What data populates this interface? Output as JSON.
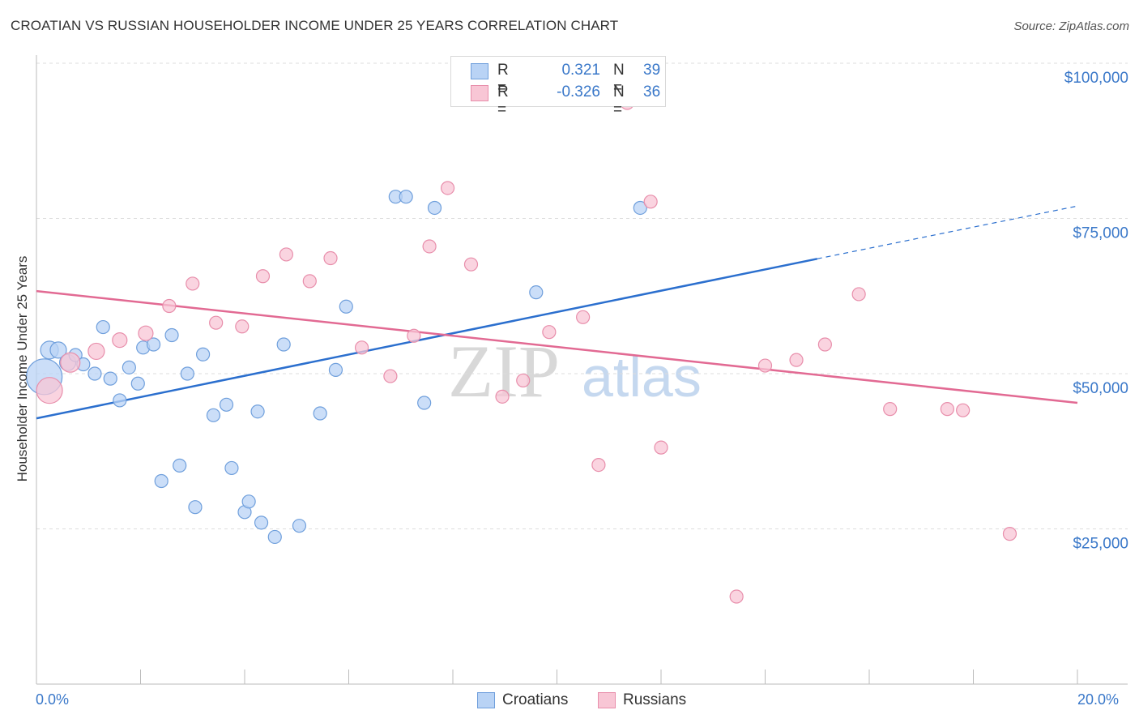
{
  "title": "CROATIAN VS RUSSIAN HOUSEHOLDER INCOME UNDER 25 YEARS CORRELATION CHART",
  "source": "Source: ZipAtlas.com",
  "watermark": {
    "zip": "ZIP",
    "atlas": "atlas"
  },
  "colors": {
    "croatians_fill": "#b9d3f5",
    "croatians_stroke": "#6f9fdc",
    "croatians_line": "#2b6fce",
    "russians_fill": "#f8c6d5",
    "russians_stroke": "#e88eab",
    "russians_line": "#e26a93",
    "axis_text": "#3a78c9",
    "grid": "#dddddd"
  },
  "legend": {
    "rows": [
      {
        "r_label": "R =",
        "r_value": "0.321",
        "n_label": "N =",
        "n_value": "39"
      },
      {
        "r_label": "R =",
        "r_value": "-0.326",
        "n_label": "N =",
        "n_value": "36"
      }
    ]
  },
  "bottom_legend": [
    "Croatians",
    "Russians"
  ],
  "x_axis": {
    "min_label": "0.0%",
    "max_label": "20.0%"
  },
  "chart_data": {
    "type": "scatter",
    "title": "CROATIAN VS RUSSIAN HOUSEHOLDER INCOME UNDER 25 YEARS CORRELATION CHART",
    "xlabel": "",
    "ylabel": "Householder Income Under 25 Years",
    "xlim": [
      0,
      20
    ],
    "ylim": [
      0,
      105000
    ],
    "y_ticks": [
      25000,
      50000,
      75000,
      100000
    ],
    "y_tick_labels": [
      "$25,000",
      "$50,000",
      "$75,000",
      "$100,000"
    ],
    "x_tick_labels": [
      "0.0%",
      "20.0%"
    ],
    "series": [
      {
        "name": "Croatians",
        "trend": {
          "x": [
            0.0,
            15.0
          ],
          "y": [
            42800,
            68500
          ],
          "dashed_to": {
            "x": 20.0,
            "y": 77000
          }
        },
        "points": [
          {
            "x": 0.15,
            "y": 49500,
            "size": 22
          },
          {
            "x": 0.25,
            "y": 53800,
            "size": 11
          },
          {
            "x": 0.42,
            "y": 53800,
            "size": 10
          },
          {
            "x": 0.6,
            "y": 51800,
            "size": 10
          },
          {
            "x": 0.75,
            "y": 53000,
            "size": 8
          },
          {
            "x": 0.9,
            "y": 51500,
            "size": 8
          },
          {
            "x": 1.12,
            "y": 50000,
            "size": 8
          },
          {
            "x": 1.28,
            "y": 57500,
            "size": 8
          },
          {
            "x": 1.42,
            "y": 49200,
            "size": 8
          },
          {
            "x": 1.6,
            "y": 45700,
            "size": 8
          },
          {
            "x": 1.78,
            "y": 51000,
            "size": 8
          },
          {
            "x": 1.95,
            "y": 48400,
            "size": 8
          },
          {
            "x": 2.05,
            "y": 54200,
            "size": 8
          },
          {
            "x": 2.25,
            "y": 54700,
            "size": 8
          },
          {
            "x": 2.4,
            "y": 32700,
            "size": 8
          },
          {
            "x": 2.6,
            "y": 56200,
            "size": 8
          },
          {
            "x": 2.75,
            "y": 35200,
            "size": 8
          },
          {
            "x": 2.9,
            "y": 50000,
            "size": 8
          },
          {
            "x": 3.05,
            "y": 28500,
            "size": 8
          },
          {
            "x": 3.2,
            "y": 53100,
            "size": 8
          },
          {
            "x": 3.4,
            "y": 43300,
            "size": 8
          },
          {
            "x": 3.65,
            "y": 45000,
            "size": 8
          },
          {
            "x": 3.75,
            "y": 34800,
            "size": 8
          },
          {
            "x": 4.0,
            "y": 27700,
            "size": 8
          },
          {
            "x": 4.08,
            "y": 29400,
            "size": 8
          },
          {
            "x": 4.25,
            "y": 43900,
            "size": 8
          },
          {
            "x": 4.32,
            "y": 26000,
            "size": 8
          },
          {
            "x": 4.58,
            "y": 23700,
            "size": 8
          },
          {
            "x": 4.75,
            "y": 54700,
            "size": 8
          },
          {
            "x": 5.05,
            "y": 25500,
            "size": 8
          },
          {
            "x": 5.45,
            "y": 43600,
            "size": 8
          },
          {
            "x": 5.75,
            "y": 50600,
            "size": 8
          },
          {
            "x": 5.95,
            "y": 60800,
            "size": 8
          },
          {
            "x": 6.9,
            "y": 78500,
            "size": 8
          },
          {
            "x": 7.1,
            "y": 78500,
            "size": 8
          },
          {
            "x": 7.45,
            "y": 45300,
            "size": 8
          },
          {
            "x": 7.65,
            "y": 76700,
            "size": 8
          },
          {
            "x": 9.6,
            "y": 63100,
            "size": 8
          },
          {
            "x": 11.6,
            "y": 76700,
            "size": 8
          }
        ]
      },
      {
        "name": "Russians",
        "trend": {
          "x": [
            0.0,
            20.0
          ],
          "y": [
            63300,
            45300
          ]
        },
        "points": [
          {
            "x": 0.25,
            "y": 47300,
            "size": 16
          },
          {
            "x": 0.65,
            "y": 51800,
            "size": 12
          },
          {
            "x": 1.15,
            "y": 53600,
            "size": 10
          },
          {
            "x": 1.6,
            "y": 55400,
            "size": 9
          },
          {
            "x": 2.1,
            "y": 56500,
            "size": 9
          },
          {
            "x": 2.55,
            "y": 60900,
            "size": 8
          },
          {
            "x": 3.0,
            "y": 64500,
            "size": 8
          },
          {
            "x": 3.45,
            "y": 58200,
            "size": 8
          },
          {
            "x": 3.95,
            "y": 57600,
            "size": 8
          },
          {
            "x": 4.35,
            "y": 65700,
            "size": 8
          },
          {
            "x": 4.8,
            "y": 69200,
            "size": 8
          },
          {
            "x": 5.25,
            "y": 64900,
            "size": 8
          },
          {
            "x": 5.65,
            "y": 68600,
            "size": 8
          },
          {
            "x": 6.25,
            "y": 54200,
            "size": 8
          },
          {
            "x": 6.8,
            "y": 49600,
            "size": 8
          },
          {
            "x": 7.25,
            "y": 56100,
            "size": 8
          },
          {
            "x": 7.55,
            "y": 70500,
            "size": 8
          },
          {
            "x": 7.9,
            "y": 79900,
            "size": 8
          },
          {
            "x": 8.35,
            "y": 67600,
            "size": 8
          },
          {
            "x": 8.95,
            "y": 46300,
            "size": 8
          },
          {
            "x": 9.35,
            "y": 48900,
            "size": 8
          },
          {
            "x": 9.85,
            "y": 56700,
            "size": 8
          },
          {
            "x": 10.5,
            "y": 59100,
            "size": 8
          },
          {
            "x": 10.8,
            "y": 35300,
            "size": 8
          },
          {
            "x": 11.35,
            "y": 93600,
            "size": 8
          },
          {
            "x": 11.8,
            "y": 77700,
            "size": 8
          },
          {
            "x": 12.0,
            "y": 38100,
            "size": 8
          },
          {
            "x": 13.45,
            "y": 14100,
            "size": 8
          },
          {
            "x": 14.0,
            "y": 51300,
            "size": 8
          },
          {
            "x": 14.6,
            "y": 52200,
            "size": 8
          },
          {
            "x": 15.15,
            "y": 54700,
            "size": 8
          },
          {
            "x": 15.8,
            "y": 62800,
            "size": 8
          },
          {
            "x": 16.4,
            "y": 44300,
            "size": 8
          },
          {
            "x": 17.5,
            "y": 44300,
            "size": 8
          },
          {
            "x": 17.8,
            "y": 44100,
            "size": 8
          },
          {
            "x": 18.7,
            "y": 24200,
            "size": 8
          }
        ]
      }
    ]
  }
}
